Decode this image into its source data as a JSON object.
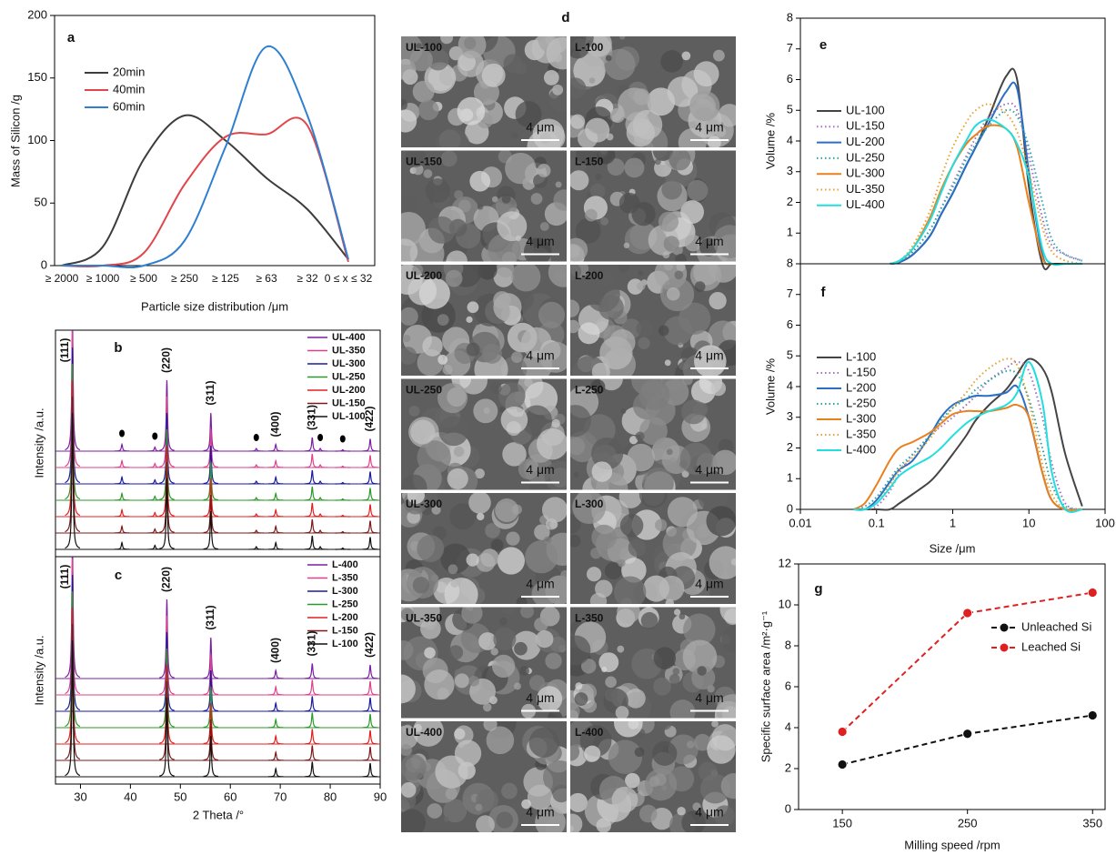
{
  "chart_data": [
    {
      "type": "line",
      "title": "a",
      "y_label": "Mass of Silicon /g",
      "x_label": "Particle size distribution /μm",
      "categories": [
        "≥ 2000",
        "≥ 1000",
        "≥ 500",
        "≥ 250",
        "≥ 125",
        "≥ 63",
        "≥ 32",
        "0 ≤ x ≤ 32"
      ],
      "ylim": [
        0,
        200
      ],
      "yticks": [
        0,
        50,
        100,
        150,
        200
      ],
      "series": [
        {
          "name": "20min",
          "color": "#3d3d3d",
          "values": [
            0,
            15,
            85,
            120,
            100,
            70,
            45,
            5
          ]
        },
        {
          "name": "40min",
          "color": "#e0474c",
          "values": [
            0,
            0,
            10,
            65,
            103,
            105,
            112,
            3
          ]
        },
        {
          "name": "60min",
          "color": "#2f7fd0",
          "values": [
            0,
            0,
            0,
            20,
            95,
            175,
            120,
            5
          ]
        }
      ]
    },
    {
      "type": "spectrum",
      "title": "b",
      "y_label": "Intensity /a.u.",
      "xlim": [
        25,
        90
      ],
      "peaks": {
        "x": [
          28.4,
          47.3,
          56.1,
          69.1,
          76.4,
          88.0
        ],
        "values": [
          100,
          52,
          28,
          5,
          10,
          9
        ],
        "labels": [
          "(111)",
          "(220)",
          "(311)",
          "(400)",
          "(331)",
          "(422)"
        ],
        "color": "#e02020"
      },
      "impurities": {
        "x": [
          38.3,
          44.9,
          65.2,
          78.0,
          82.5
        ],
        "values": [
          5,
          3,
          2,
          2,
          1
        ]
      },
      "series": [
        {
          "name": "UL-400",
          "color": "#7b1fa2"
        },
        {
          "name": "UL-350",
          "color": "#e0408a"
        },
        {
          "name": "UL-300",
          "color": "#1a1aa0"
        },
        {
          "name": "UL-250",
          "color": "#2a9a2a"
        },
        {
          "name": "UL-200",
          "color": "#e02020"
        },
        {
          "name": "UL-150",
          "color": "#7a1a1a"
        },
        {
          "name": "UL-100",
          "color": "#111111"
        }
      ]
    },
    {
      "type": "spectrum",
      "title": "c",
      "y_label": "Intensity /a.u.",
      "x_label": "2 Theta /°",
      "xlim": [
        25,
        90
      ],
      "xticks": [
        30,
        40,
        50,
        60,
        70,
        80,
        90
      ],
      "peaks": {
        "x": [
          28.4,
          47.3,
          56.1,
          69.1,
          76.4,
          88.0
        ],
        "values": [
          100,
          58,
          30,
          6,
          11,
          10
        ],
        "labels": [
          "(111)",
          "(220)",
          "(311)",
          "(400)",
          "(331)",
          "(422)"
        ],
        "color": "#e02020"
      },
      "series": [
        {
          "name": "L-400",
          "color": "#7b1fa2"
        },
        {
          "name": "L-350",
          "color": "#e0408a"
        },
        {
          "name": "L-300",
          "color": "#1a1aa0"
        },
        {
          "name": "L-250",
          "color": "#2a9a2a"
        },
        {
          "name": "L-200",
          "color": "#e02020"
        },
        {
          "name": "L-150",
          "color": "#7a1a1a"
        },
        {
          "name": "L-100",
          "color": "#111111"
        }
      ]
    },
    {
      "type": "image_grid",
      "title": "d",
      "scale_bar": "4 μm",
      "labels": [
        "UL-100",
        "L-100",
        "UL-150",
        "L-150",
        "UL-200",
        "L-200",
        "UL-250",
        "L-250",
        "UL-300",
        "L-300",
        "UL-350",
        "L-350",
        "UL-400",
        "L-400"
      ]
    },
    {
      "type": "line",
      "title": "e",
      "y_label": "Volume /%",
      "log_x": true,
      "xlim": [
        0.01,
        100
      ],
      "ylim": [
        0,
        8
      ],
      "yticks": [
        1,
        2,
        3,
        4,
        5,
        6,
        7,
        8
      ],
      "x": [
        0.15,
        0.2,
        0.3,
        0.5,
        0.7,
        1,
        1.5,
        2,
        3,
        5,
        7,
        10,
        15,
        20,
        30,
        50
      ],
      "series": [
        {
          "name": "UL-100",
          "color": "#444444",
          "values": [
            0,
            0.05,
            0.3,
            0.9,
            1.6,
            2.3,
            3.2,
            3.8,
            4.8,
            6.1,
            6.0,
            2.5,
            0,
            0,
            0,
            0
          ]
        },
        {
          "name": "UL-150",
          "color": "#a36fc4",
          "linestyle": "dotted",
          "values": [
            0,
            0.1,
            0.4,
            1.1,
            1.8,
            2.6,
            3.5,
            4.1,
            4.8,
            5.2,
            5.0,
            3.5,
            1.5,
            0.6,
            0.3,
            0.1
          ]
        },
        {
          "name": "UL-200",
          "color": "#2a6fc4",
          "values": [
            0,
            0.05,
            0.3,
            0.9,
            1.6,
            2.3,
            3.2,
            3.8,
            4.6,
            5.6,
            5.7,
            3,
            0.3,
            0,
            0,
            0
          ]
        },
        {
          "name": "UL-250",
          "color": "#2aa5a5",
          "linestyle": "dotted",
          "values": [
            0,
            0.1,
            0.4,
            1.1,
            1.8,
            2.5,
            3.4,
            3.9,
            4.5,
            5.0,
            4.8,
            3.8,
            2,
            0.8,
            0.3,
            0.1
          ]
        },
        {
          "name": "UL-300",
          "color": "#e8801e",
          "values": [
            0,
            0.1,
            0.5,
            1.5,
            2.4,
            3.2,
            3.9,
            4.2,
            4.5,
            4.4,
            3.8,
            2,
            0.2,
            0,
            0,
            0
          ]
        },
        {
          "name": "UL-350",
          "color": "#e8a030",
          "linestyle": "dotted",
          "values": [
            0,
            0.1,
            0.6,
            1.7,
            2.8,
            3.8,
            4.6,
            5.0,
            5.2,
            4.9,
            4.3,
            3.0,
            1.2,
            0.4,
            0.1,
            0
          ]
        },
        {
          "name": "UL-400",
          "color": "#22dede",
          "values": [
            0,
            0.1,
            0.5,
            1.4,
            2.3,
            3.2,
            4.0,
            4.5,
            4.7,
            4.4,
            3.9,
            2.8,
            0.5,
            0,
            0,
            0
          ]
        }
      ]
    },
    {
      "type": "line",
      "title": "f",
      "y_label": "Volume /%",
      "x_label": "Size /μm",
      "log_x": true,
      "xlim": [
        0.01,
        100
      ],
      "xticks": [
        0.01,
        0.1,
        1,
        10,
        100
      ],
      "ylim": [
        0,
        8
      ],
      "yticks": [
        0,
        1,
        2,
        3,
        4,
        5,
        6,
        7,
        8
      ],
      "x": [
        0.05,
        0.07,
        0.1,
        0.15,
        0.2,
        0.3,
        0.5,
        0.7,
        1,
        1.5,
        2,
        3,
        5,
        7,
        10,
        15,
        20,
        30,
        50
      ],
      "series": [
        {
          "name": "L-100",
          "color": "#444444",
          "values": [
            0,
            0,
            0,
            0,
            0.2,
            0.5,
            0.9,
            1.3,
            1.8,
            2.4,
            2.9,
            3.4,
            3.9,
            4.4,
            4.9,
            4.6,
            3.8,
            1.8,
            0.1
          ]
        },
        {
          "name": "L-150",
          "color": "#a36fc4",
          "linestyle": "dotted",
          "values": [
            0,
            0,
            0.1,
            0.6,
            1.2,
            1.8,
            2.4,
            2.7,
            3.0,
            3.4,
            3.7,
            4.2,
            4.6,
            4.8,
            4.5,
            3.0,
            1.5,
            0.2,
            0
          ]
        },
        {
          "name": "L-200",
          "color": "#2a6fc4",
          "values": [
            0,
            0,
            0.3,
            0.9,
            1.3,
            1.6,
            2.4,
            3.0,
            3.4,
            3.6,
            3.7,
            3.7,
            3.8,
            4.0,
            3.0,
            1.2,
            0.3,
            0,
            0
          ]
        },
        {
          "name": "L-250",
          "color": "#2aa5a5",
          "linestyle": "dotted",
          "values": [
            0,
            0.1,
            0.4,
            1.0,
            1.4,
            1.8,
            2.4,
            2.9,
            3.3,
            3.6,
            3.9,
            4.2,
            4.5,
            4.4,
            3.6,
            2.0,
            0.8,
            0.1,
            0
          ]
        },
        {
          "name": "L-300",
          "color": "#e8801e",
          "values": [
            0,
            0.2,
            0.8,
            1.6,
            2.0,
            2.2,
            2.5,
            2.8,
            3.1,
            3.2,
            3.2,
            3.2,
            3.3,
            3.4,
            3.0,
            1.2,
            0.3,
            0,
            0
          ]
        },
        {
          "name": "L-350",
          "color": "#e8a030",
          "linestyle": "dotted",
          "values": [
            0,
            0,
            0.2,
            0.8,
            1.3,
            1.7,
            2.3,
            2.8,
            3.3,
            3.8,
            4.2,
            4.6,
            4.9,
            4.7,
            3.5,
            1.5,
            0.5,
            0,
            0
          ]
        },
        {
          "name": "L-400",
          "color": "#22dede",
          "values": [
            0,
            0,
            0.2,
            0.7,
            1.1,
            1.4,
            1.7,
            2.0,
            2.4,
            2.8,
            3.0,
            3.2,
            3.4,
            3.8,
            4.8,
            3.5,
            1.2,
            0,
            0
          ]
        }
      ]
    },
    {
      "type": "line",
      "title": "g",
      "y_label": "Specific surface area /m²·g⁻¹",
      "x_label": "Milling speed /rpm",
      "markers": true,
      "x": [
        150,
        250,
        350
      ],
      "xlim": [
        115,
        360
      ],
      "xticks": [
        150,
        250,
        350
      ],
      "ylim": [
        0,
        12
      ],
      "yticks": [
        0,
        2,
        4,
        6,
        8,
        10,
        12
      ],
      "series": [
        {
          "name": "Unleached Si",
          "color": "#111111",
          "linestyle": "dashed",
          "values": [
            2.2,
            3.7,
            4.6
          ]
        },
        {
          "name": "Leached Si",
          "color": "#e02020",
          "linestyle": "dashed",
          "values": [
            3.8,
            9.6,
            10.6
          ]
        }
      ]
    }
  ]
}
